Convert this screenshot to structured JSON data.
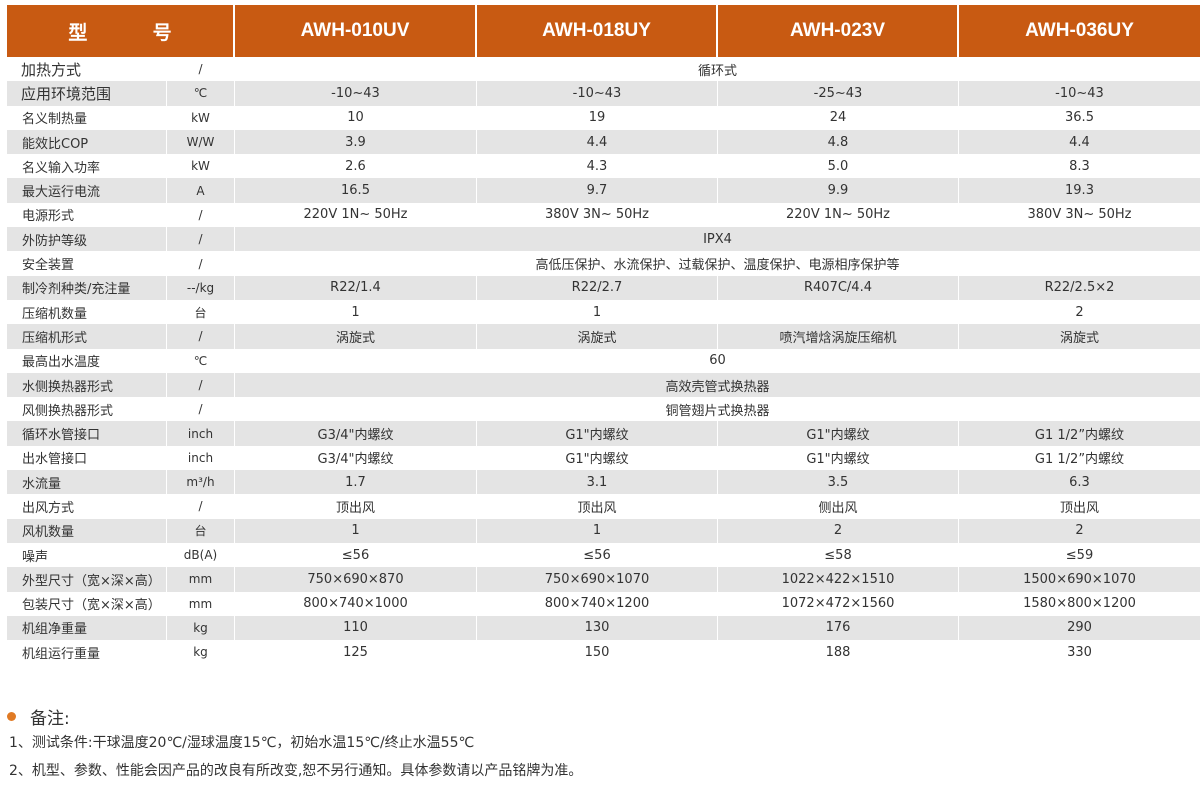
{
  "header": {
    "model_label": "型 号",
    "models": [
      "AWH-010UV",
      "AWH-018UY",
      "AWH-023V",
      "AWH-036UY"
    ]
  },
  "rows": [
    {
      "param": "加热方式",
      "unit": "/",
      "merged": "循环式"
    },
    {
      "param": "应用环境范围",
      "unit": "℃",
      "values": [
        "-10~43",
        "-10~43",
        "-25~43",
        "-10~43"
      ]
    },
    {
      "param": "名义制热量",
      "unit": "kW",
      "values": [
        "10",
        "19",
        "24",
        "36.5"
      ]
    },
    {
      "param": "能效比COP",
      "unit": "W/W",
      "values": [
        "3.9",
        "4.4",
        "4.8",
        "4.4"
      ]
    },
    {
      "param": "名义输入功率",
      "unit": "kW",
      "values": [
        "2.6",
        "4.3",
        "5.0",
        "8.3"
      ]
    },
    {
      "param": "最大运行电流",
      "unit": "A",
      "values": [
        "16.5",
        "9.7",
        "9.9",
        "19.3"
      ]
    },
    {
      "param": "电源形式",
      "unit": "/",
      "values": [
        "220V 1N~ 50Hz",
        "380V 3N~ 50Hz",
        "220V 1N~ 50Hz",
        "380V 3N~ 50Hz"
      ]
    },
    {
      "param": "外防护等级",
      "unit": "/",
      "merged": "IPX4"
    },
    {
      "param": "安全装置",
      "unit": "/",
      "merged": "高低压保护、水流保护、过载保护、温度保护、电源相序保护等"
    },
    {
      "param": "制冷剂种类/充注量",
      "unit": "--/kg",
      "values": [
        "R22/1.4",
        "R22/2.7",
        "R407C/4.4",
        "R22/2.5×2"
      ]
    },
    {
      "param": "压缩机数量",
      "unit": "台",
      "values": [
        "1",
        "1",
        "",
        "2"
      ]
    },
    {
      "param": "压缩机形式",
      "unit": "/",
      "values": [
        "涡旋式",
        "涡旋式",
        "喷汽增焓涡旋压缩机",
        "涡旋式"
      ]
    },
    {
      "param": "最高出水温度",
      "unit": "℃",
      "merged": "60"
    },
    {
      "param": "水侧换热器形式",
      "unit": "/",
      "merged": "高效壳管式换热器"
    },
    {
      "param": "风侧换热器形式",
      "unit": "/",
      "merged": "铜管翅片式换热器"
    },
    {
      "param": "循环水管接口",
      "unit": "inch",
      "values": [
        "G3/4\"内螺纹",
        "G1\"内螺纹",
        "G1\"内螺纹",
        "G1 1/2”内螺纹"
      ]
    },
    {
      "param": "出水管接口",
      "unit": "inch",
      "values": [
        "G3/4\"内螺纹",
        "G1\"内螺纹",
        "G1\"内螺纹",
        "G1 1/2”内螺纹"
      ]
    },
    {
      "param": "水流量",
      "unit": "m³/h",
      "values": [
        "1.7",
        "3.1",
        "3.5",
        "6.3"
      ]
    },
    {
      "param": "出风方式",
      "unit": "/",
      "values": [
        "顶出风",
        "顶出风",
        "侧出风",
        "顶出风"
      ]
    },
    {
      "param": "风机数量",
      "unit": "台",
      "values": [
        "1",
        "1",
        "2",
        "2"
      ]
    },
    {
      "param": "噪声",
      "unit": "dB(A)",
      "values": [
        "≤56",
        "≤56",
        "≤58",
        "≤59"
      ]
    },
    {
      "param": "外型尺寸（宽×深×高）",
      "unit": "mm",
      "values": [
        "750×690×870",
        "750×690×1070",
        "1022×422×1510",
        "1500×690×1070"
      ]
    },
    {
      "param": "包装尺寸（宽×深×高）",
      "unit": "mm",
      "values": [
        "800×740×1000",
        "800×740×1200",
        "1072×472×1560",
        "1580×800×1200"
      ]
    },
    {
      "param": "机组净重量",
      "unit": "kg",
      "values": [
        "110",
        "130",
        "176",
        "290"
      ]
    },
    {
      "param": "机组运行重量",
      "unit": "kg",
      "values": [
        "125",
        "150",
        "188",
        "330"
      ]
    }
  ],
  "notes": {
    "title": "备注:",
    "lines": [
      "1、测试条件:干球温度20℃/湿球温度15℃，初始水温15℃/终止水温55℃",
      "2、机型、参数、性能会因产品的改良有所改变,恕不另行通知。具体参数请以产品铭牌为准。"
    ]
  },
  "colors": {
    "header_bg": "#c85a12",
    "stripe": "#e4e4e4",
    "bullet": "#e07a24"
  }
}
